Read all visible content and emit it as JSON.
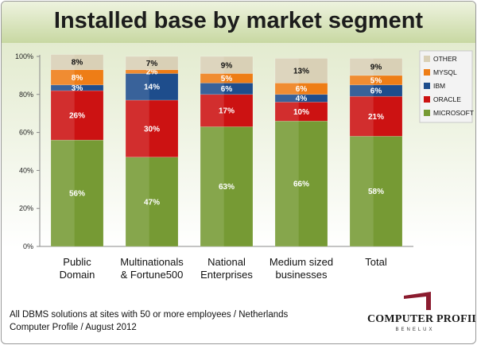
{
  "header": {
    "title": "Installed base by market segment"
  },
  "footer": {
    "line1": "All DBMS solutions at sites with 50 or more employees  / Netherlands",
    "line2": "Computer Profile / August 2012"
  },
  "logo": {
    "name": "COMPUTER PROFILE",
    "sub": "BENELUX",
    "color": "#8b1c2f"
  },
  "chart_data": {
    "type": "bar",
    "stacked": true,
    "title": "Installed base by market segment",
    "xlabel": "",
    "ylabel": "",
    "ylim": [
      0,
      100
    ],
    "yticks": [
      "0%",
      "20%",
      "40%",
      "60%",
      "80%",
      "100%"
    ],
    "grid": false,
    "legend_position": "right",
    "categories": [
      [
        "Public",
        "Domain"
      ],
      [
        "Multinationals",
        "& Fortune500"
      ],
      [
        "National",
        "Enterprises"
      ],
      [
        "Medium sized",
        "businesses"
      ],
      [
        "Total"
      ]
    ],
    "series": [
      {
        "name": "MICROSOFT",
        "color": "#769a34",
        "values": [
          56,
          47,
          63,
          66,
          58
        ],
        "labels": [
          "56%",
          "47%",
          "63%",
          "66%",
          "58%"
        ]
      },
      {
        "name": "ORACLE",
        "color": "#cc1212",
        "values": [
          26,
          30,
          17,
          10,
          21
        ],
        "labels": [
          "26%",
          "30%",
          "17%",
          "10%",
          "21%"
        ]
      },
      {
        "name": "IBM",
        "color": "#1e4d8c",
        "values": [
          3,
          14,
          6,
          4,
          6
        ],
        "labels": [
          "3%",
          "14%",
          "6%",
          "4%",
          "6%"
        ]
      },
      {
        "name": "MYSQL",
        "color": "#ee7d16",
        "values": [
          8,
          2,
          5,
          6,
          5
        ],
        "labels": [
          "8%",
          "2%",
          "5%",
          "6%",
          "5%"
        ]
      },
      {
        "name": "OTHER",
        "color": "#d9d0b6",
        "values": [
          8,
          7,
          9,
          13,
          9
        ],
        "labels": [
          "8%",
          "7%",
          "9%",
          "13%",
          "9%"
        ]
      }
    ],
    "legend_order": [
      "OTHER",
      "MYSQL",
      "IBM",
      "ORACLE",
      "MICROSOFT"
    ]
  }
}
